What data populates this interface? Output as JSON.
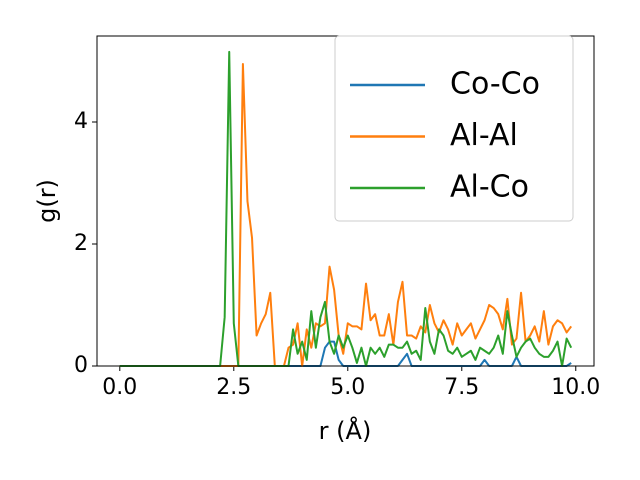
{
  "chart_data": {
    "type": "line",
    "xlabel": "r (Å)",
    "ylabel": "g(r)",
    "x": [
      0,
      0.1,
      0.2,
      0.3,
      0.4,
      0.5,
      0.6,
      0.7,
      0.8,
      0.9,
      1,
      1.1,
      1.2,
      1.3,
      1.4,
      1.5,
      1.6,
      1.7,
      1.8,
      1.9,
      2,
      2.1,
      2.2,
      2.3,
      2.4,
      2.5,
      2.6,
      2.7,
      2.8,
      2.9,
      3,
      3.1,
      3.2,
      3.3,
      3.4,
      3.5,
      3.6,
      3.7,
      3.8,
      3.9,
      4,
      4.1,
      4.2,
      4.3,
      4.4,
      4.5,
      4.6,
      4.7,
      4.8,
      4.9,
      5,
      5.1,
      5.2,
      5.3,
      5.4,
      5.5,
      5.6,
      5.7,
      5.8,
      5.9,
      6,
      6.1,
      6.2,
      6.3,
      6.4,
      6.5,
      6.6,
      6.7,
      6.8,
      6.9,
      7,
      7.1,
      7.2,
      7.3,
      7.4,
      7.5,
      7.6,
      7.7,
      7.8,
      7.9,
      8,
      8.1,
      8.2,
      8.3,
      8.4,
      8.5,
      8.6,
      8.7,
      8.8,
      8.9,
      9,
      9.1,
      9.2,
      9.3,
      9.4,
      9.5,
      9.6,
      9.7,
      9.8,
      9.9
    ],
    "series": [
      {
        "name": "Co-Co",
        "color": "#1f77b4",
        "values": [
          0,
          0,
          0,
          0,
          0,
          0,
          0,
          0,
          0,
          0,
          0,
          0,
          0,
          0,
          0,
          0,
          0,
          0,
          0,
          0,
          0,
          0,
          0,
          0,
          0,
          0,
          0,
          0,
          0,
          0,
          0,
          0,
          0,
          0,
          0,
          0,
          0,
          0,
          0,
          0,
          0,
          0,
          0,
          0,
          0,
          0.3,
          0.4,
          0.4,
          0.1,
          0,
          0,
          0,
          0,
          0,
          0,
          0,
          0,
          0,
          0,
          0,
          0,
          0,
          0.1,
          0.2,
          0,
          0,
          0,
          0,
          0,
          0,
          0,
          0,
          0,
          0,
          0,
          0,
          0,
          0,
          0,
          0,
          0.1,
          0,
          0,
          0,
          0,
          0,
          0,
          0.15,
          0,
          0,
          0,
          0,
          0,
          0,
          0,
          0,
          0,
          0,
          0,
          0.05
        ]
      },
      {
        "name": "Al-Al",
        "color": "#ff7f0e",
        "values": [
          0,
          0,
          0,
          0,
          0,
          0,
          0,
          0,
          0,
          0,
          0,
          0,
          0,
          0,
          0,
          0,
          0,
          0,
          0,
          0,
          0,
          0,
          0,
          0,
          0,
          0,
          0,
          4.95,
          2.7,
          2.1,
          0.5,
          0.7,
          0.85,
          1.2,
          0,
          0,
          0,
          0.3,
          0.35,
          0.7,
          0,
          0.6,
          0.3,
          0.7,
          0.65,
          0.7,
          1.63,
          1.25,
          0.5,
          0.2,
          0.7,
          0.65,
          0.65,
          0.6,
          1.35,
          0.75,
          0.85,
          0.5,
          0.5,
          0.85,
          0.35,
          1.05,
          1.38,
          0.5,
          0.5,
          0.45,
          0.65,
          0.55,
          1.0,
          0.7,
          0.55,
          0.75,
          0.6,
          0.35,
          0.7,
          0.5,
          0.6,
          0.7,
          0.45,
          0.6,
          0.75,
          1.0,
          0.95,
          0.85,
          0.6,
          1.1,
          0.35,
          0.45,
          1.2,
          0.4,
          0.5,
          0.65,
          0.4,
          0.9,
          0.35,
          0.65,
          0.75,
          0.7,
          0.55,
          0.65
        ]
      },
      {
        "name": "Al-Co",
        "color": "#2ca02c",
        "values": [
          0,
          0,
          0,
          0,
          0,
          0,
          0,
          0,
          0,
          0,
          0,
          0,
          0,
          0,
          0,
          0,
          0,
          0,
          0,
          0,
          0,
          0,
          0,
          0.8,
          5.15,
          0.7,
          0,
          0,
          0,
          0,
          0,
          0,
          0,
          0,
          0,
          0,
          0,
          0,
          0.6,
          0.2,
          0.4,
          0.1,
          0.9,
          0.3,
          0.8,
          1.05,
          0.4,
          0.2,
          0.5,
          0.3,
          0.5,
          0.3,
          0.05,
          0.3,
          0,
          0.3,
          0.2,
          0.3,
          0.15,
          0.35,
          0.35,
          0.3,
          0.3,
          0.4,
          0.2,
          0.25,
          0.1,
          0.95,
          0.4,
          0.2,
          0.6,
          0.5,
          0.25,
          0.2,
          0.3,
          0.15,
          0.2,
          0.25,
          0.1,
          0.3,
          0.25,
          0.2,
          0.3,
          0.5,
          0.2,
          0.9,
          0.5,
          0.15,
          0.3,
          0.4,
          0.45,
          0.3,
          0.2,
          0.15,
          0.15,
          0.25,
          0.4,
          0,
          0.45,
          0.3
        ]
      }
    ],
    "xlim": [
      -0.5,
      10.4
    ],
    "ylim": [
      0,
      5.41
    ],
    "xticks": [
      {
        "value": 0,
        "label": "0.0"
      },
      {
        "value": 2.5,
        "label": "2.5"
      },
      {
        "value": 5,
        "label": "5.0"
      },
      {
        "value": 7.5,
        "label": "7.5"
      },
      {
        "value": 10,
        "label": "10.0"
      }
    ],
    "yticks": [
      0,
      2,
      4
    ],
    "legend": "upper right"
  }
}
